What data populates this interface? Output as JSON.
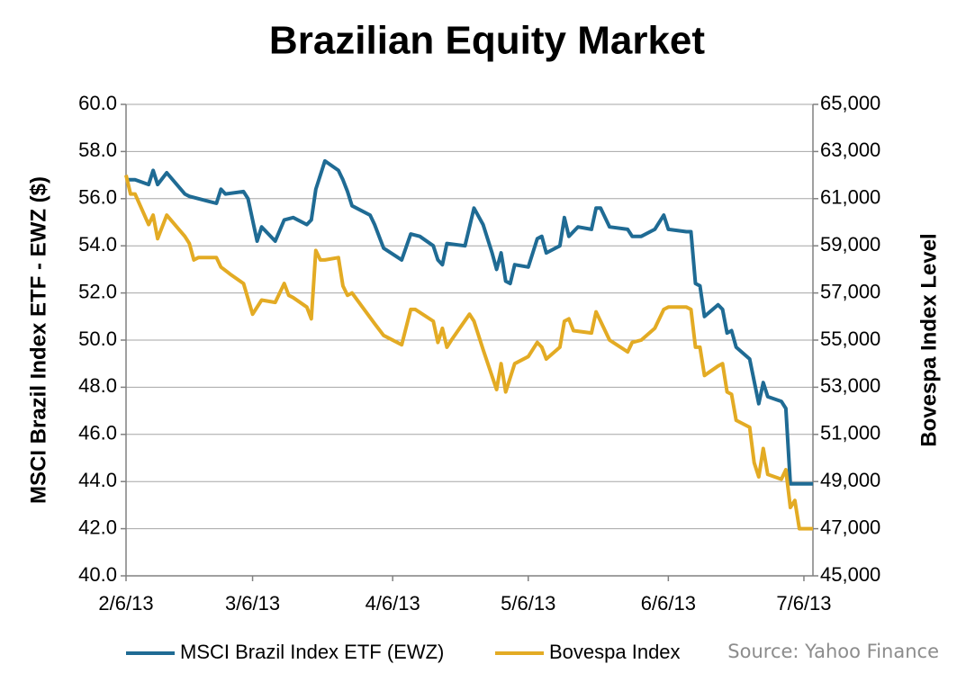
{
  "chart_data": {
    "type": "line",
    "title": "Brazilian Equity Market",
    "y_label": "MSCI Brazil Index ETF - EWZ ($)",
    "y2_label": "Bovespa Index Level",
    "source": "Source: Yahoo Finance",
    "xlim": [
      "2/6/13",
      "7/8/13"
    ],
    "xticks": [
      "2/6/13",
      "3/6/13",
      "4/6/13",
      "5/6/13",
      "6/6/13",
      "7/6/13"
    ],
    "ylim": [
      40,
      60
    ],
    "yticks": [
      {
        "value": 40,
        "label": "40.0"
      },
      {
        "value": 42,
        "label": "42.0"
      },
      {
        "value": 44,
        "label": "44.0"
      },
      {
        "value": 46,
        "label": "46.0"
      },
      {
        "value": 48,
        "label": "48.0"
      },
      {
        "value": 50,
        "label": "50.0"
      },
      {
        "value": 52,
        "label": "52.0"
      },
      {
        "value": 54,
        "label": "54.0"
      },
      {
        "value": 56,
        "label": "56.0"
      },
      {
        "value": 58,
        "label": "58.0"
      },
      {
        "value": 60,
        "label": "60.0"
      }
    ],
    "y2lim": [
      45000,
      65000
    ],
    "y2ticks": [
      {
        "value": 45000,
        "label": "45,000"
      },
      {
        "value": 47000,
        "label": "47,000"
      },
      {
        "value": 49000,
        "label": "49,000"
      },
      {
        "value": 51000,
        "label": "51,000"
      },
      {
        "value": 53000,
        "label": "53,000"
      },
      {
        "value": 55000,
        "label": "55,000"
      },
      {
        "value": 57000,
        "label": "57,000"
      },
      {
        "value": 59000,
        "label": "59,000"
      },
      {
        "value": 61000,
        "label": "61,000"
      },
      {
        "value": 63000,
        "label": "63,000"
      },
      {
        "value": 65000,
        "label": "65,000"
      }
    ],
    "grid": true,
    "series": [
      {
        "name": "MSCI Brazil Index ETF (EWZ)",
        "color": "#1f6b94",
        "axis": "y",
        "x": [
          "2/6/13",
          "2/8/13",
          "2/11/13",
          "2/12/13",
          "2/13/13",
          "2/15/13",
          "2/19/13",
          "2/20/13",
          "2/24/13",
          "2/26/13",
          "2/27/13",
          "2/28/13",
          "3/4/13",
          "3/5/13",
          "3/7/13",
          "3/8/13",
          "3/11/13",
          "3/13/13",
          "3/15/13",
          "3/18/13",
          "3/19/13",
          "3/20/13",
          "3/22/13",
          "3/25/13",
          "3/26/13",
          "3/27/13",
          "3/28/13",
          "4/1/13",
          "4/2/13",
          "4/4/13",
          "4/8/13",
          "4/10/13",
          "4/12/13",
          "4/15/13",
          "4/16/13",
          "4/17/13",
          "4/18/13",
          "4/22/13",
          "4/24/13",
          "4/26/13",
          "4/28/13",
          "4/29/13",
          "4/30/13",
          "5/1/13",
          "5/2/13",
          "5/3/13",
          "5/6/13",
          "5/8/13",
          "5/9/13",
          "5/10/13",
          "5/13/13",
          "5/14/13",
          "5/15/13",
          "5/17/13",
          "5/20/13",
          "5/21/13",
          "5/22/13",
          "5/24/13",
          "5/28/13",
          "5/29/13",
          "5/31/13",
          "6/3/13",
          "6/5/13",
          "6/6/13",
          "6/10/13",
          "6/11/13",
          "6/12/13",
          "6/13/13",
          "6/14/13",
          "6/17/13",
          "6/18/13",
          "6/19/13",
          "6/20/13",
          "6/21/13",
          "6/24/13",
          "6/26/13",
          "6/27/13",
          "6/28/13",
          "7/1/13",
          "7/2/13",
          "7/3/13",
          "7/8/13"
        ],
        "values": [
          56.8,
          56.8,
          56.6,
          57.2,
          56.6,
          57.1,
          56.2,
          56.1,
          55.9,
          55.8,
          56.4,
          56.2,
          56.3,
          56.0,
          54.2,
          54.8,
          54.2,
          55.1,
          55.2,
          54.9,
          55.1,
          56.4,
          57.6,
          57.2,
          56.8,
          56.3,
          55.7,
          55.3,
          54.9,
          53.9,
          53.4,
          54.5,
          54.4,
          54.0,
          53.4,
          53.2,
          54.1,
          54.0,
          55.6,
          54.9,
          53.7,
          53.0,
          53.7,
          52.5,
          52.4,
          53.2,
          53.1,
          54.3,
          54.4,
          53.7,
          54.0,
          55.2,
          54.4,
          54.8,
          54.7,
          55.6,
          55.6,
          54.8,
          54.7,
          54.4,
          54.4,
          54.7,
          55.3,
          54.7,
          54.6,
          54.6,
          52.4,
          52.3,
          51.0,
          51.5,
          51.3,
          50.3,
          50.4,
          49.7,
          49.2,
          47.3,
          48.2,
          47.6,
          47.4,
          47.1,
          43.9,
          43.9
        ]
      },
      {
        "name": "Bovespa Index",
        "color": "#e3ab24",
        "axis": "y2",
        "x": [
          "2/6/13",
          "2/7/13",
          "2/8/13",
          "2/11/13",
          "2/12/13",
          "2/13/13",
          "2/15/13",
          "2/19/13",
          "2/20/13",
          "2/21/13",
          "2/22/13",
          "2/26/13",
          "2/27/13",
          "3/1/13",
          "3/4/13",
          "3/6/13",
          "3/8/13",
          "3/11/13",
          "3/13/13",
          "3/14/13",
          "3/15/13",
          "3/18/13",
          "3/19/13",
          "3/20/13",
          "3/21/13",
          "3/22/13",
          "3/25/13",
          "3/26/13",
          "3/27/13",
          "3/28/13",
          "4/2/13",
          "4/4/13",
          "4/8/13",
          "4/10/13",
          "4/11/13",
          "4/15/13",
          "4/16/13",
          "4/17/13",
          "4/18/13",
          "4/19/13",
          "4/23/13",
          "4/24/13",
          "4/26/13",
          "4/29/13",
          "4/30/13",
          "5/1/13",
          "5/3/13",
          "5/6/13",
          "5/8/13",
          "5/9/13",
          "5/10/13",
          "5/13/13",
          "5/14/13",
          "5/15/13",
          "5/16/13",
          "5/20/13",
          "5/21/13",
          "5/22/13",
          "5/24/13",
          "5/28/13",
          "5/29/13",
          "5/31/13",
          "6/3/13",
          "6/5/13",
          "6/6/13",
          "6/10/13",
          "6/11/13",
          "6/12/13",
          "6/13/13",
          "6/14/13",
          "6/17/13",
          "6/18/13",
          "6/19/13",
          "6/20/13",
          "6/21/13",
          "6/24/13",
          "6/25/13",
          "6/26/13",
          "6/27/13",
          "6/28/13",
          "7/1/13",
          "7/2/13",
          "7/3/13",
          "7/4/13",
          "7/5/13",
          "7/8/13"
        ],
        "values": [
          62000,
          61200,
          61200,
          59900,
          60300,
          59300,
          60300,
          59400,
          59100,
          58400,
          58500,
          58500,
          58100,
          57800,
          57400,
          56100,
          56700,
          56600,
          57400,
          56900,
          56800,
          56400,
          55900,
          58800,
          58400,
          58400,
          58500,
          57300,
          56900,
          57000,
          55700,
          55200,
          54800,
          56300,
          56300,
          55800,
          54900,
          55500,
          54700,
          55000,
          56100,
          55800,
          54600,
          52900,
          54000,
          52800,
          54000,
          54300,
          54900,
          54700,
          54200,
          54700,
          55800,
          55900,
          55400,
          55300,
          56200,
          55800,
          55000,
          54500,
          54900,
          55000,
          55500,
          56300,
          56400,
          56400,
          56300,
          54700,
          54700,
          53500,
          53900,
          54000,
          52800,
          52700,
          51600,
          51300,
          49800,
          49200,
          50400,
          49300,
          49100,
          49500,
          47900,
          48200,
          47000,
          47000
        ]
      }
    ]
  }
}
